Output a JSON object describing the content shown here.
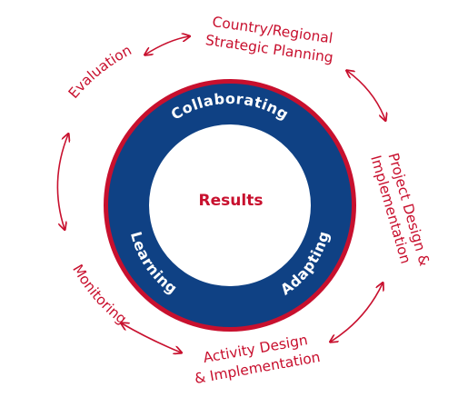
{
  "colors": {
    "ring_fill": "#0f4184",
    "ring_outline": "#c8102e",
    "accent_text": "#c8102e",
    "ring_text": "#ffffff"
  },
  "center": {
    "label": "Results"
  },
  "ring": {
    "top": "Collaborating",
    "left": "Learning",
    "right": "Adapting"
  },
  "cycle": {
    "strategic_planning": [
      "Country/Regional",
      "Strategic Planning"
    ],
    "project_design": [
      "Project Design &",
      "Implementation"
    ],
    "activity_design": [
      "Activity Design",
      "& Implementation"
    ],
    "monitoring": "Monitoring",
    "evaluation": "Evaluation"
  }
}
